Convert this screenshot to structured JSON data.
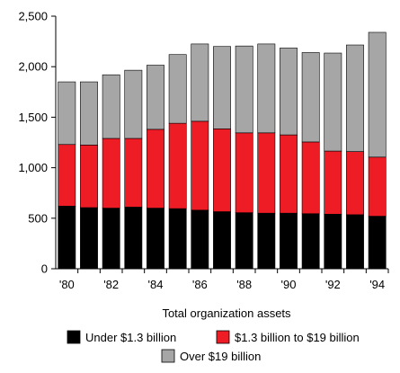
{
  "chart_data": {
    "type": "bar",
    "stacked": true,
    "categories": [
      "'80",
      "'81",
      "'82",
      "'83",
      "'84",
      "'85",
      "'86",
      "'87",
      "'88",
      "'89",
      "'90",
      "'91",
      "'92",
      "'93",
      "'94"
    ],
    "tick_labels": [
      "'80",
      "",
      "'82",
      "",
      "'84",
      "",
      "'86",
      "",
      "'88",
      "",
      "'90",
      "",
      "'92",
      "",
      "'94"
    ],
    "xlabel": "Total organization assets",
    "ylim": [
      0,
      2500
    ],
    "yticks": [
      0,
      500,
      1000,
      1500,
      2000,
      2500
    ],
    "ytick_labels": [
      "0",
      "500",
      "1,000",
      "1,500",
      "2,000",
      "2,500"
    ],
    "grid": false,
    "legend_position": "bottom",
    "series": [
      {
        "name": "Under $1.3 billion",
        "color": "#000000",
        "values": [
          620,
          605,
          600,
          610,
          600,
          595,
          580,
          565,
          555,
          550,
          550,
          545,
          540,
          535,
          520
        ]
      },
      {
        "name": "$1.3 billion to $19 billion",
        "color": "#ee1c25",
        "values": [
          610,
          620,
          690,
          680,
          780,
          845,
          880,
          820,
          790,
          795,
          775,
          710,
          625,
          625,
          585
        ]
      },
      {
        "name": "Over $19 billion",
        "color": "#a6a6a6",
        "values": [
          620,
          625,
          630,
          675,
          635,
          680,
          765,
          815,
          860,
          880,
          860,
          885,
          970,
          1055,
          1235
        ]
      }
    ]
  }
}
